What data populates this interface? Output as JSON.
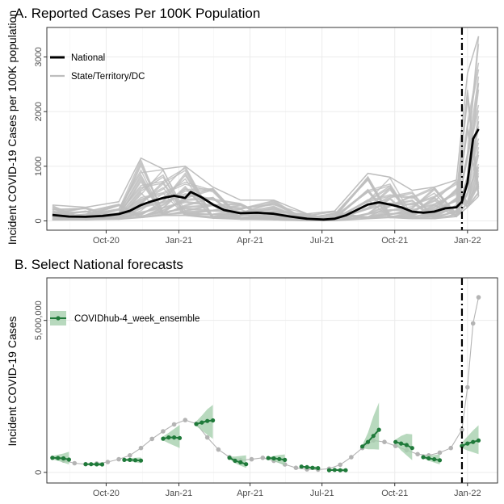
{
  "colors": {
    "national": "#000000",
    "state": "#bebebe",
    "ensemble": "#1f7a3a",
    "ensemble_band": "#a6d0ae",
    "observed_dots": "#b4b4b4",
    "grid_major": "#ebebeb",
    "grid_minor": "#f4f4f4",
    "panel_border": "#333333"
  },
  "chart_data": [
    {
      "type": "line",
      "title": "A. Reported Cases Per 100K Population",
      "ylabel": "Incident COVID-19 Cases per 100K population",
      "xlabel": "",
      "x_ticks": [
        "Oct-20",
        "Jan-21",
        "Apr-21",
        "Jul-21",
        "Oct-21",
        "Jan-22"
      ],
      "y_ticks": [
        "0",
        "1000",
        "2000",
        "3000"
      ],
      "xlim": [
        "2020-07-18",
        "2022-02-08"
      ],
      "ylim": [
        -170,
        3540
      ],
      "grid": true,
      "legend_position": "top-left",
      "vline_date": "2021-12-25",
      "series": [
        {
          "name": "National",
          "color": "#000000",
          "x": [
            "2020-07-25",
            "2020-08-15",
            "2020-09-05",
            "2020-09-26",
            "2020-10-17",
            "2020-10-31",
            "2020-11-14",
            "2020-11-28",
            "2020-12-12",
            "2020-12-26",
            "2021-01-09",
            "2021-01-16",
            "2021-01-30",
            "2021-02-13",
            "2021-02-27",
            "2021-03-20",
            "2021-04-10",
            "2021-05-01",
            "2021-05-22",
            "2021-06-12",
            "2021-07-03",
            "2021-07-17",
            "2021-07-31",
            "2021-08-14",
            "2021-08-28",
            "2021-09-11",
            "2021-09-25",
            "2021-10-09",
            "2021-10-23",
            "2021-11-06",
            "2021-11-20",
            "2021-12-04",
            "2021-12-18",
            "2021-12-25",
            "2022-01-01",
            "2022-01-08",
            "2022-01-15"
          ],
          "values": [
            110,
            80,
            75,
            90,
            125,
            185,
            290,
            360,
            420,
            460,
            420,
            530,
            430,
            300,
            200,
            140,
            150,
            130,
            80,
            40,
            25,
            40,
            100,
            200,
            300,
            340,
            300,
            250,
            170,
            150,
            170,
            230,
            250,
            350,
            700,
            1500,
            1680
          ]
        },
        {
          "name": "State/Territory/DC",
          "color": "#bebebe",
          "x": [
            "2020-07-25",
            "2020-09-05",
            "2020-10-17",
            "2020-11-14",
            "2020-12-12",
            "2021-01-09",
            "2021-02-13",
            "2021-03-20",
            "2021-05-01",
            "2021-06-12",
            "2021-07-17",
            "2021-08-28",
            "2021-09-25",
            "2021-10-23",
            "2021-11-20",
            "2021-12-18",
            "2022-01-01",
            "2022-01-15"
          ],
          "values_min": [
            20,
            20,
            30,
            60,
            100,
            100,
            50,
            30,
            20,
            5,
            5,
            40,
            60,
            40,
            40,
            80,
            250,
            450
          ],
          "values_max": [
            290,
            250,
            350,
            1150,
            950,
            1000,
            620,
            380,
            380,
            130,
            180,
            870,
            800,
            560,
            620,
            750,
            2700,
            3380
          ]
        }
      ]
    },
    {
      "type": "line",
      "title": "B. Select National forecasts",
      "ylabel": "Incident COVID-19 Cases",
      "xlabel": "",
      "x_ticks": [
        "Oct-20",
        "Jan-21",
        "Apr-21",
        "Jul-21",
        "Oct-21",
        "Jan-22"
      ],
      "y_ticks": [
        "0",
        "5,000,000"
      ],
      "xlim": [
        "2020-07-18",
        "2022-02-08"
      ],
      "ylim": [
        -350000,
        6400000
      ],
      "grid": true,
      "legend_position": "top-left",
      "vline_date": "2021-12-25",
      "series": [
        {
          "name": "Observed",
          "color": "#b4b4b4",
          "x": [
            "2020-07-25",
            "2020-08-08",
            "2020-08-22",
            "2020-09-05",
            "2020-09-19",
            "2020-10-03",
            "2020-10-17",
            "2020-10-31",
            "2020-11-14",
            "2020-11-28",
            "2020-12-12",
            "2020-12-26",
            "2021-01-09",
            "2021-01-23",
            "2021-02-06",
            "2021-02-20",
            "2021-03-06",
            "2021-03-20",
            "2021-04-03",
            "2021-04-17",
            "2021-05-01",
            "2021-05-15",
            "2021-05-29",
            "2021-06-12",
            "2021-06-26",
            "2021-07-10",
            "2021-07-24",
            "2021-08-07",
            "2021-08-21",
            "2021-09-04",
            "2021-09-18",
            "2021-10-02",
            "2021-10-16",
            "2021-10-30",
            "2021-11-13",
            "2021-11-27",
            "2021-12-11",
            "2021-12-25",
            "2022-01-01",
            "2022-01-08",
            "2022-01-15"
          ],
          "values": [
            480000,
            390000,
            300000,
            270000,
            290000,
            340000,
            430000,
            560000,
            800000,
            1100000,
            1350000,
            1580000,
            1720000,
            1600000,
            1150000,
            750000,
            500000,
            400000,
            430000,
            480000,
            380000,
            260000,
            150000,
            100000,
            90000,
            120000,
            250000,
            500000,
            800000,
            1050000,
            1000000,
            870000,
            730000,
            600000,
            560000,
            650000,
            800000,
            1400000,
            2800000,
            4900000,
            5760000
          ]
        },
        {
          "name": "COVIDhub-4_week_ensemble",
          "color": "#1f7a3a",
          "segments": [
            {
              "x": [
                "2020-07-25",
                "2020-08-01",
                "2020-08-08",
                "2020-08-15"
              ],
              "values": [
                480000,
                470000,
                460000,
                420000
              ],
              "lower": [
                420000,
                380000,
                320000,
                260000
              ],
              "upper": [
                540000,
                580000,
                620000,
                680000
              ]
            },
            {
              "x": [
                "2020-09-05",
                "2020-09-12",
                "2020-09-19",
                "2020-09-26"
              ],
              "values": [
                270000,
                270000,
                265000,
                260000
              ],
              "lower": [
                250000,
                235000,
                220000,
                205000
              ],
              "upper": [
                290000,
                305000,
                315000,
                325000
              ]
            },
            {
              "x": [
                "2020-10-24",
                "2020-10-31",
                "2020-11-07",
                "2020-11-14"
              ],
              "values": [
                410000,
                410000,
                400000,
                390000
              ],
              "lower": [
                380000,
                360000,
                330000,
                300000
              ],
              "upper": [
                440000,
                470000,
                480000,
                490000
              ]
            },
            {
              "x": [
                "2020-12-12",
                "2020-12-19",
                "2020-12-26",
                "2021-01-02"
              ],
              "values": [
                1110000,
                1150000,
                1150000,
                1130000
              ],
              "lower": [
                1050000,
                960000,
                880000,
                800000
              ],
              "upper": [
                1180000,
                1300000,
                1430000,
                1560000
              ]
            },
            {
              "x": [
                "2021-01-23",
                "2021-01-30",
                "2021-02-06",
                "2021-02-13"
              ],
              "values": [
                1590000,
                1640000,
                1690000,
                1710000
              ],
              "lower": [
                1520000,
                1380000,
                1240000,
                1100000
              ],
              "upper": [
                1680000,
                1870000,
                2080000,
                2220000
              ]
            },
            {
              "x": [
                "2021-03-06",
                "2021-03-13",
                "2021-03-20",
                "2021-03-27"
              ],
              "values": [
                480000,
                380000,
                330000,
                270000
              ],
              "lower": [
                440000,
                300000,
                220000,
                150000
              ],
              "upper": [
                520000,
                520000,
                540000,
                560000
              ]
            },
            {
              "x": [
                "2021-04-24",
                "2021-05-01",
                "2021-05-08",
                "2021-05-15"
              ],
              "values": [
                470000,
                460000,
                440000,
                410000
              ],
              "lower": [
                440000,
                370000,
                300000,
                230000
              ],
              "upper": [
                500000,
                540000,
                570000,
                590000
              ]
            },
            {
              "x": [
                "2021-06-05",
                "2021-06-12",
                "2021-06-19",
                "2021-06-26"
              ],
              "values": [
                190000,
                170000,
                150000,
                140000
              ],
              "lower": [
                175000,
                135000,
                105000,
                80000
              ],
              "upper": [
                205000,
                200000,
                195000,
                190000
              ]
            },
            {
              "x": [
                "2021-07-10",
                "2021-07-17",
                "2021-07-24",
                "2021-07-31"
              ],
              "values": [
                70000,
                80000,
                70000,
                70000
              ],
              "lower": [
                60000,
                50000,
                40000,
                30000
              ],
              "upper": [
                80000,
                110000,
                115000,
                120000
              ]
            },
            {
              "x": [
                "2021-08-21",
                "2021-08-28",
                "2021-09-04",
                "2021-09-11"
              ],
              "values": [
                850000,
                1000000,
                1200000,
                1400000
              ],
              "lower": [
                800000,
                760000,
                760000,
                750000
              ],
              "upper": [
                900000,
                1300000,
                1850000,
                2300000
              ]
            },
            {
              "x": [
                "2021-10-02",
                "2021-10-09",
                "2021-10-16",
                "2021-10-23"
              ],
              "values": [
                1000000,
                950000,
                900000,
                800000
              ],
              "lower": [
                920000,
                720000,
                560000,
                400000
              ],
              "upper": [
                1080000,
                1200000,
                1270000,
                1250000
              ]
            },
            {
              "x": [
                "2021-11-06",
                "2021-11-13",
                "2021-11-20",
                "2021-11-27"
              ],
              "values": [
                500000,
                460000,
                430000,
                400000
              ],
              "lower": [
                460000,
                380000,
                320000,
                260000
              ],
              "upper": [
                540000,
                560000,
                570000,
                600000
              ]
            },
            {
              "x": [
                "2021-12-25",
                "2022-01-01",
                "2022-01-08",
                "2022-01-15"
              ],
              "values": [
                870000,
                950000,
                1000000,
                1050000
              ],
              "lower": [
                800000,
                720000,
                660000,
                600000
              ],
              "upper": [
                980000,
                1180000,
                1380000,
                1550000
              ]
            }
          ]
        }
      ]
    }
  ],
  "legend_a": [
    {
      "label": "National",
      "color": "#000000"
    },
    {
      "label": "State/Territory/DC",
      "color": "#bebebe"
    }
  ],
  "legend_b": [
    {
      "label": "COVIDhub-4_week_ensemble",
      "color": "#1f7a3a"
    }
  ]
}
